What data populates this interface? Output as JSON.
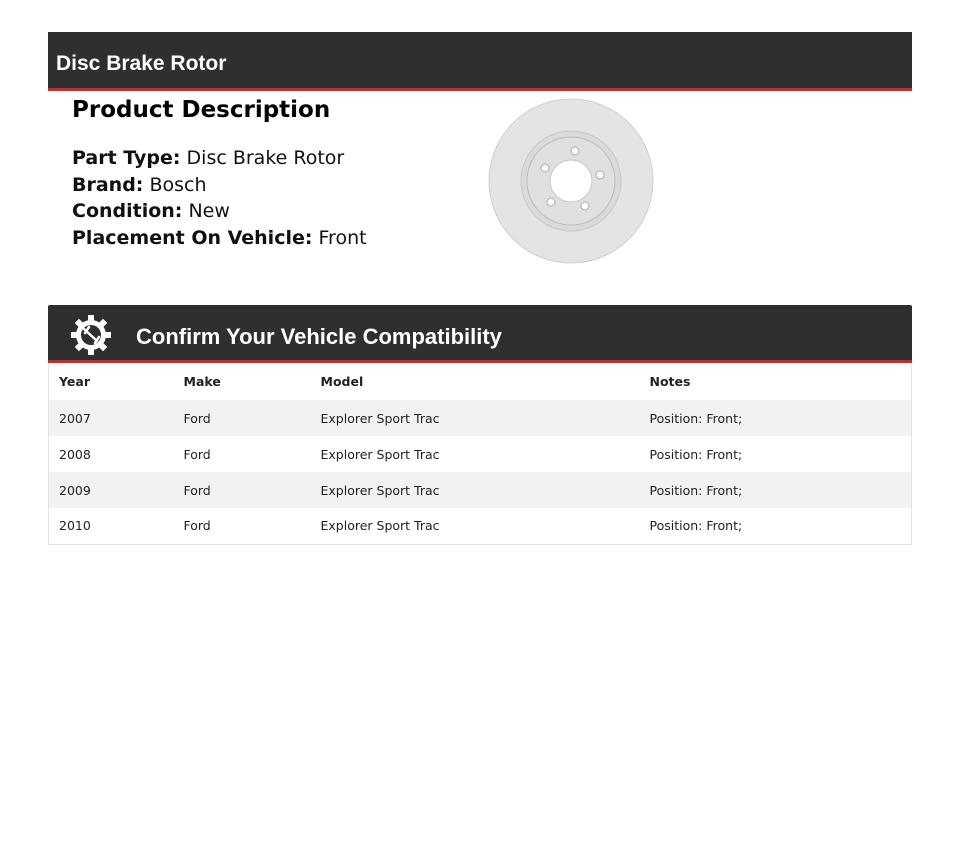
{
  "header": {
    "title": "Disc Brake Rotor"
  },
  "description": {
    "heading": "Product Description",
    "fields": [
      {
        "label": "Part Type:",
        "value": "Disc Brake Rotor"
      },
      {
        "label": "Brand:",
        "value": "Bosch"
      },
      {
        "label": "Condition:",
        "value": "New"
      },
      {
        "label": "Placement On Vehicle:",
        "value": "Front"
      }
    ],
    "image": "disc-brake-rotor-image"
  },
  "compat": {
    "title": "Confirm Your Vehicle Compatibility",
    "icon": "gear-wrench-icon",
    "columns": [
      "Year",
      "Make",
      "Model",
      "Notes"
    ],
    "rows": [
      [
        "2007",
        "Ford",
        "Explorer Sport Trac",
        "Position: Front;"
      ],
      [
        "2008",
        "Ford",
        "Explorer Sport Trac",
        "Position: Front;"
      ],
      [
        "2009",
        "Ford",
        "Explorer Sport Trac",
        "Position: Front;"
      ],
      [
        "2010",
        "Ford",
        "Explorer Sport Trac",
        "Position: Front;"
      ]
    ]
  },
  "colors": {
    "bar": "#302f30",
    "accent": "#d8242b"
  }
}
